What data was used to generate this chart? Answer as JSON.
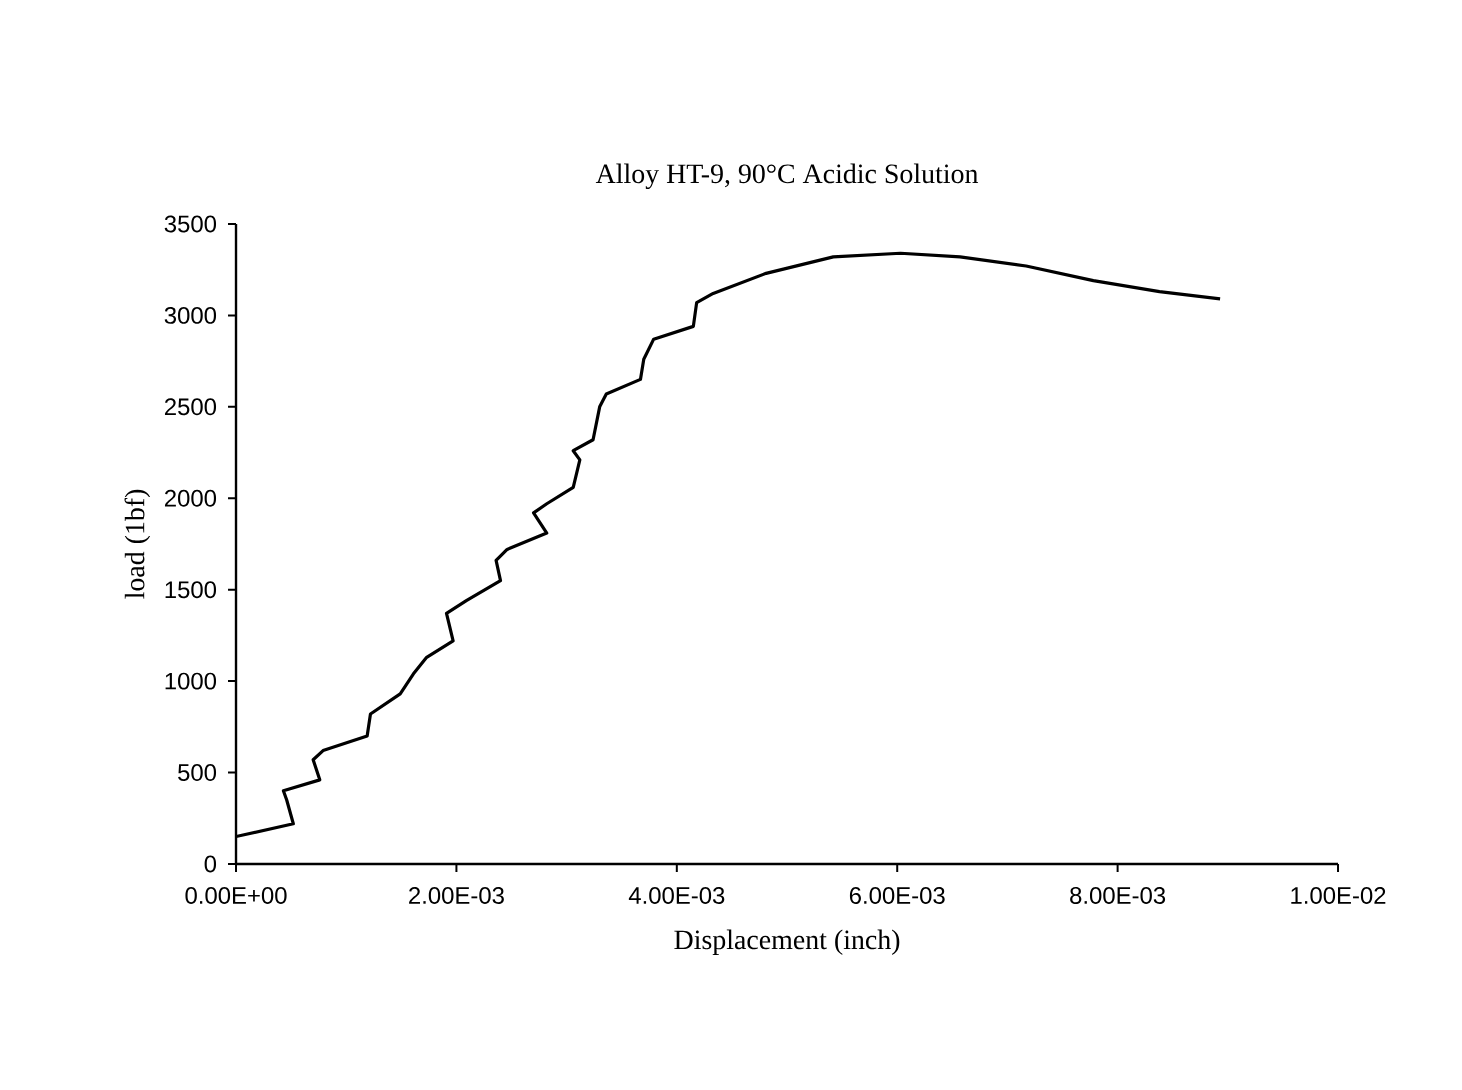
{
  "chart_data": {
    "type": "line",
    "title": "Alloy HT-9, 90°C Acidic Solution",
    "xlabel": "Displacement (inch)",
    "ylabel": "load (1bf)",
    "series": [
      {
        "color": "#000000",
        "x": [
          0,
          0.00052,
          0.00046,
          0.00043,
          0.00076,
          0.0007,
          0.00079,
          0.00119,
          0.00122,
          0.00149,
          0.00161,
          0.00173,
          0.00197,
          0.00191,
          0.00209,
          0.0024,
          0.00236,
          0.00246,
          0.00282,
          0.0027,
          0.00282,
          0.00306,
          0.00312,
          0.00306,
          0.00324,
          0.0033,
          0.00336,
          0.00367,
          0.0037,
          0.00379,
          0.00415,
          0.00418,
          0.00433,
          0.00481,
          0.00542,
          0.00603,
          0.00657,
          0.00717,
          0.00778,
          0.00838,
          0.00893
        ],
        "values": [
          150,
          220,
          350,
          400,
          460,
          570,
          620,
          700,
          820,
          930,
          1040,
          1130,
          1220,
          1370,
          1440,
          1550,
          1660,
          1720,
          1810,
          1920,
          1970,
          2060,
          2210,
          2260,
          2320,
          2500,
          2570,
          2650,
          2760,
          2870,
          2940,
          3070,
          3120,
          3230,
          3320,
          3340,
          3320,
          3270,
          3190,
          3130,
          3090
        ]
      }
    ],
    "xlim": [
      0,
      0.01
    ],
    "ylim": [
      0,
      3500
    ],
    "xticks": [
      {
        "value": 0,
        "label": "0.00E+00"
      },
      {
        "value": 0.002,
        "label": "2.00E-03"
      },
      {
        "value": 0.004,
        "label": "4.00E-03"
      },
      {
        "value": 0.006,
        "label": "6.00E-03"
      },
      {
        "value": 0.008,
        "label": "8.00E-03"
      },
      {
        "value": 0.01,
        "label": "1.00E-02"
      }
    ],
    "yticks": [
      0,
      500,
      1000,
      1500,
      2000,
      2500,
      3000,
      3500
    ],
    "grid": false,
    "legend": false,
    "marker": "none",
    "line_style": "solid"
  }
}
